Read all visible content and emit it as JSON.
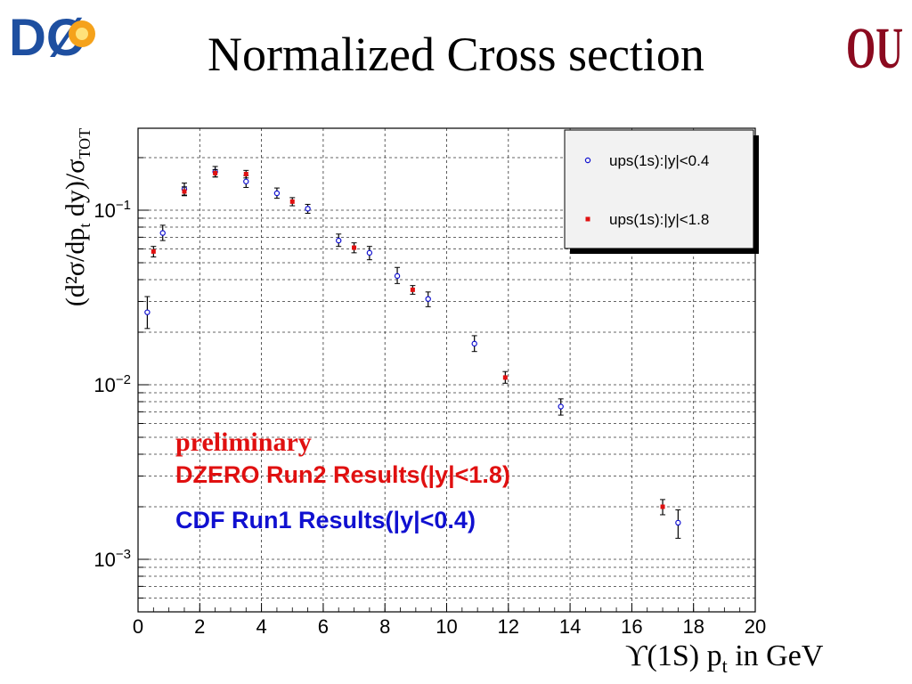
{
  "slide": {
    "title": "Normalized Cross section"
  },
  "logos": {
    "left_text": "DØ",
    "right_text": "OU"
  },
  "colors": {
    "red": "#e01010",
    "blue": "#1010d0",
    "ou_crimson": "#8b0a1f",
    "d0_blue": "#1e4fa0",
    "d0_orange": "#f5a21b"
  },
  "chart_data": {
    "type": "scatter",
    "title": "",
    "xlabel": "ϒ(1S) p_t in GeV",
    "ylabel": "(d²σ/dp_t dy)/σ_TOT",
    "xlim": [
      0,
      20
    ],
    "ylim": [
      0.0005,
      0.3
    ],
    "yscale": "log",
    "grid": true,
    "legend_position": "top-right",
    "x_ticks": [
      "0",
      "2",
      "4",
      "6",
      "8",
      "10",
      "12",
      "14",
      "16",
      "18",
      "20"
    ],
    "y_ticks": [
      {
        "label_base": "10",
        "label_exp": "−1",
        "value": 0.1
      },
      {
        "label_base": "10",
        "label_exp": "−2",
        "value": 0.01
      },
      {
        "label_base": "10",
        "label_exp": "−3",
        "value": 0.001
      }
    ],
    "series": [
      {
        "name": "ups(1s):|y|<0.4",
        "marker": "open-circle",
        "color": "#1010d0",
        "points": [
          {
            "x": 0.3,
            "y": 0.026,
            "err_lo": 0.005,
            "err_hi": 0.006
          },
          {
            "x": 0.8,
            "y": 0.074,
            "err_lo": 0.007,
            "err_hi": 0.008
          },
          {
            "x": 1.5,
            "y": 0.132,
            "err_lo": 0.01,
            "err_hi": 0.011
          },
          {
            "x": 2.5,
            "y": 0.166,
            "err_lo": 0.011,
            "err_hi": 0.012
          },
          {
            "x": 3.5,
            "y": 0.146,
            "err_lo": 0.011,
            "err_hi": 0.012
          },
          {
            "x": 4.5,
            "y": 0.125,
            "err_lo": 0.008,
            "err_hi": 0.009
          },
          {
            "x": 5.5,
            "y": 0.102,
            "err_lo": 0.006,
            "err_hi": 0.006
          },
          {
            "x": 6.5,
            "y": 0.067,
            "err_lo": 0.005,
            "err_hi": 0.006
          },
          {
            "x": 7.5,
            "y": 0.057,
            "err_lo": 0.005,
            "err_hi": 0.005
          },
          {
            "x": 8.4,
            "y": 0.042,
            "err_lo": 0.004,
            "err_hi": 0.005
          },
          {
            "x": 9.4,
            "y": 0.031,
            "err_lo": 0.003,
            "err_hi": 0.003
          },
          {
            "x": 10.9,
            "y": 0.0172,
            "err_lo": 0.0017,
            "err_hi": 0.0019
          },
          {
            "x": 13.7,
            "y": 0.0075,
            "err_lo": 0.0008,
            "err_hi": 0.0008
          },
          {
            "x": 17.5,
            "y": 0.00162,
            "err_lo": 0.0003,
            "err_hi": 0.0003
          }
        ]
      },
      {
        "name": "ups(1s):|y|<1.8",
        "marker": "filled-square",
        "color": "#e01010",
        "points": [
          {
            "x": 0.5,
            "y": 0.058,
            "err_lo": 0.004,
            "err_hi": 0.004
          },
          {
            "x": 1.5,
            "y": 0.128,
            "err_lo": 0.007,
            "err_hi": 0.008
          },
          {
            "x": 2.5,
            "y": 0.163,
            "err_lo": 0.008,
            "err_hi": 0.008
          },
          {
            "x": 3.5,
            "y": 0.161,
            "err_lo": 0.008,
            "err_hi": 0.008
          },
          {
            "x": 5.0,
            "y": 0.112,
            "err_lo": 0.006,
            "err_hi": 0.006
          },
          {
            "x": 7.0,
            "y": 0.061,
            "err_lo": 0.004,
            "err_hi": 0.004
          },
          {
            "x": 8.9,
            "y": 0.035,
            "err_lo": 0.002,
            "err_hi": 0.002
          },
          {
            "x": 11.9,
            "y": 0.011,
            "err_lo": 0.0008,
            "err_hi": 0.0009
          },
          {
            "x": 17.0,
            "y": 0.002,
            "err_lo": 0.0002,
            "err_hi": 0.0002
          }
        ]
      }
    ],
    "annotations": [
      {
        "text": "preliminary",
        "color": "#e01010"
      },
      {
        "text": "DZERO Run2 Results(|y|<1.8)",
        "color": "#e01010"
      },
      {
        "text": "CDF Run1 Results(|y|<0.4)",
        "color": "#1010d0"
      }
    ]
  }
}
